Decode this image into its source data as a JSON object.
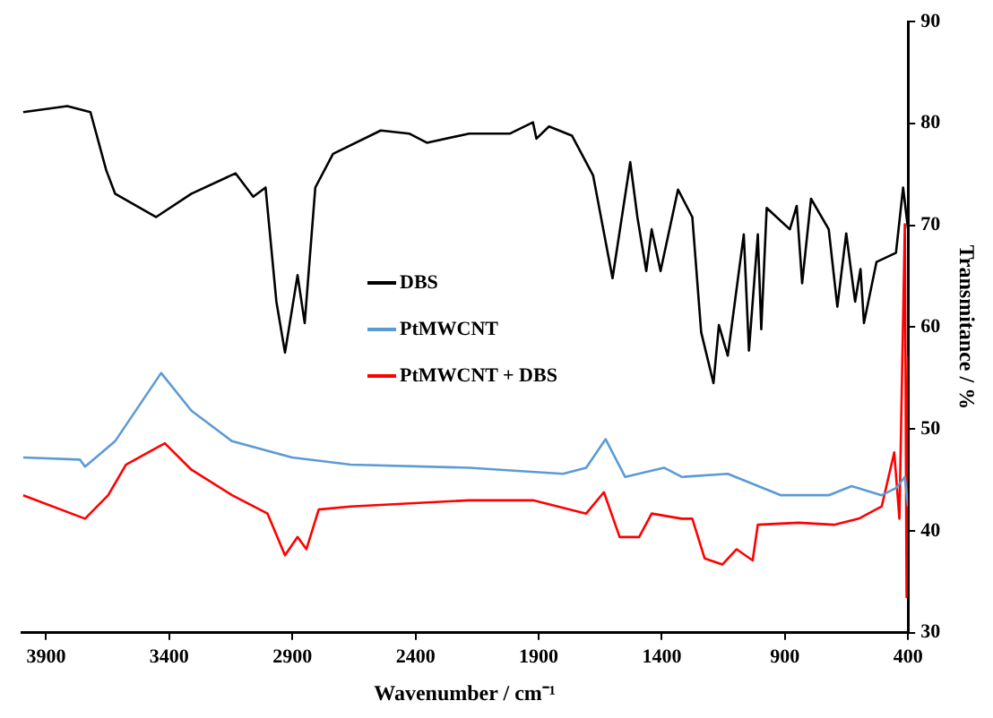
{
  "chart_data": {
    "type": "line",
    "xlabel": "Wavenumber / cm⁻¹",
    "ylabel": "Transmitance / %",
    "xlim": [
      4000,
      400
    ],
    "xticks": [
      3900,
      3400,
      2900,
      2400,
      1900,
      1400,
      900,
      400
    ],
    "ylim": [
      30,
      90
    ],
    "yticks": [
      30,
      40,
      50,
      60,
      70,
      80,
      90
    ],
    "grid": false,
    "legend": "center",
    "marker": "none",
    "line_style": "solid",
    "series": [
      {
        "name": "DBS",
        "color": "#000000",
        "x": [
          3993,
          3814,
          3720,
          3656,
          3620,
          3454,
          3310,
          3131,
          3059,
          3009,
          2965,
          2930,
          2879,
          2850,
          2807,
          2735,
          2541,
          2426,
          2354,
          2182,
          2016,
          1923,
          1909,
          1858,
          1765,
          1679,
          1600,
          1528,
          1499,
          1463,
          1441,
          1405,
          1334,
          1276,
          1240,
          1190,
          1168,
          1132,
          1067,
          1046,
          1010,
          996,
          974,
          880,
          852,
          830,
          794,
          722,
          687,
          651,
          615,
          593,
          579,
          528,
          449,
          420,
          400
        ],
        "values": [
          81.1,
          81.7,
          81.1,
          75.4,
          73.1,
          70.8,
          73.1,
          75.1,
          72.8,
          73.7,
          62.5,
          57.5,
          65.1,
          60.4,
          73.7,
          77.0,
          79.3,
          79.0,
          78.1,
          79.0,
          79.0,
          80.1,
          78.5,
          79.7,
          78.8,
          74.9,
          64.8,
          76.2,
          70.8,
          65.5,
          69.6,
          65.5,
          73.5,
          70.8,
          59.5,
          54.5,
          60.2,
          57.2,
          69.1,
          57.7,
          69.1,
          59.8,
          71.7,
          69.6,
          71.9,
          64.3,
          72.6,
          69.6,
          62.0,
          69.2,
          62.5,
          65.7,
          60.4,
          66.4,
          67.3,
          73.7,
          69.6
        ]
      },
      {
        "name": "PtMWCNT",
        "color": "#5b9bd5",
        "x": [
          3993,
          3763,
          3742,
          3620,
          3433,
          3310,
          3145,
          2901,
          2663,
          2182,
          1801,
          1707,
          1628,
          1549,
          1391,
          1319,
          1132,
          916,
          722,
          629,
          507,
          449,
          413,
          400
        ],
        "values": [
          47.2,
          47.0,
          46.3,
          48.8,
          55.5,
          51.8,
          48.8,
          47.2,
          46.5,
          46.2,
          45.6,
          46.2,
          49.0,
          45.3,
          46.2,
          45.3,
          45.6,
          43.5,
          43.5,
          44.4,
          43.5,
          44.2,
          45.3,
          42.4
        ]
      },
      {
        "name": "PtMWCNT + DBS",
        "color": "#ff0000",
        "x": [
          3993,
          3742,
          3648,
          3576,
          3418,
          3310,
          3145,
          3001,
          2930,
          2879,
          2843,
          2793,
          2663,
          2182,
          1923,
          1707,
          1635,
          1571,
          1492,
          1441,
          1319,
          1276,
          1226,
          1154,
          1096,
          1031,
          1010,
          845,
          701,
          600,
          507,
          456,
          435,
          413,
          406,
          400
        ],
        "values": [
          43.5,
          41.2,
          43.5,
          46.5,
          48.6,
          46.0,
          43.5,
          41.7,
          37.6,
          39.4,
          38.2,
          42.1,
          42.4,
          43.0,
          43.0,
          41.7,
          43.8,
          39.4,
          39.4,
          41.7,
          41.2,
          41.2,
          37.3,
          36.7,
          38.2,
          37.1,
          40.6,
          40.8,
          40.6,
          41.2,
          42.4,
          47.7,
          41.2,
          70.1,
          33.5,
          57.2
        ]
      }
    ]
  }
}
